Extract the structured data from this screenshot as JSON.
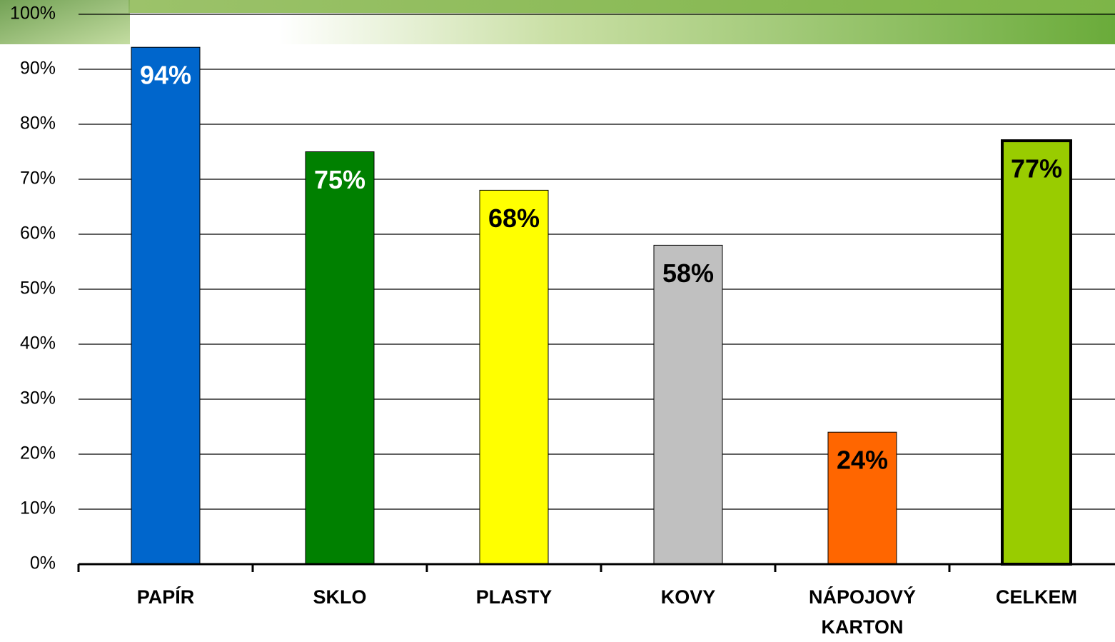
{
  "chart_data": {
    "type": "bar",
    "categories": [
      "PAPÍR",
      "SKLO",
      "PLASTY",
      "KOVY",
      "NÁPOJOVÝ KARTON",
      "CELKEM"
    ],
    "values": [
      94,
      75,
      68,
      58,
      24,
      77
    ],
    "value_labels": [
      "94%",
      "75%",
      "68%",
      "58%",
      "24%",
      "77%"
    ],
    "colors": [
      "#0066cc",
      "#008000",
      "#ffff00",
      "#c0c0c0",
      "#ff6600",
      "#99cc00"
    ],
    "label_colors": [
      "#ffffff",
      "#ffffff",
      "#000000",
      "#000000",
      "#000000",
      "#000000"
    ],
    "bar_stroke_widths": [
      1,
      1,
      1,
      1,
      1,
      4
    ],
    "ylim": [
      0,
      100
    ],
    "yticks": [
      {
        "value": 0,
        "label": "0%"
      },
      {
        "value": 10,
        "label": "10%"
      },
      {
        "value": 20,
        "label": "20%"
      },
      {
        "value": 30,
        "label": "30%"
      },
      {
        "value": 40,
        "label": "40%"
      },
      {
        "value": 50,
        "label": "50%"
      },
      {
        "value": 60,
        "label": "60%"
      },
      {
        "value": 70,
        "label": "70%"
      },
      {
        "value": 80,
        "label": "80%"
      },
      {
        "value": 90,
        "label": "90%"
      },
      {
        "value": 100,
        "label": "100%"
      }
    ],
    "grid": true
  }
}
